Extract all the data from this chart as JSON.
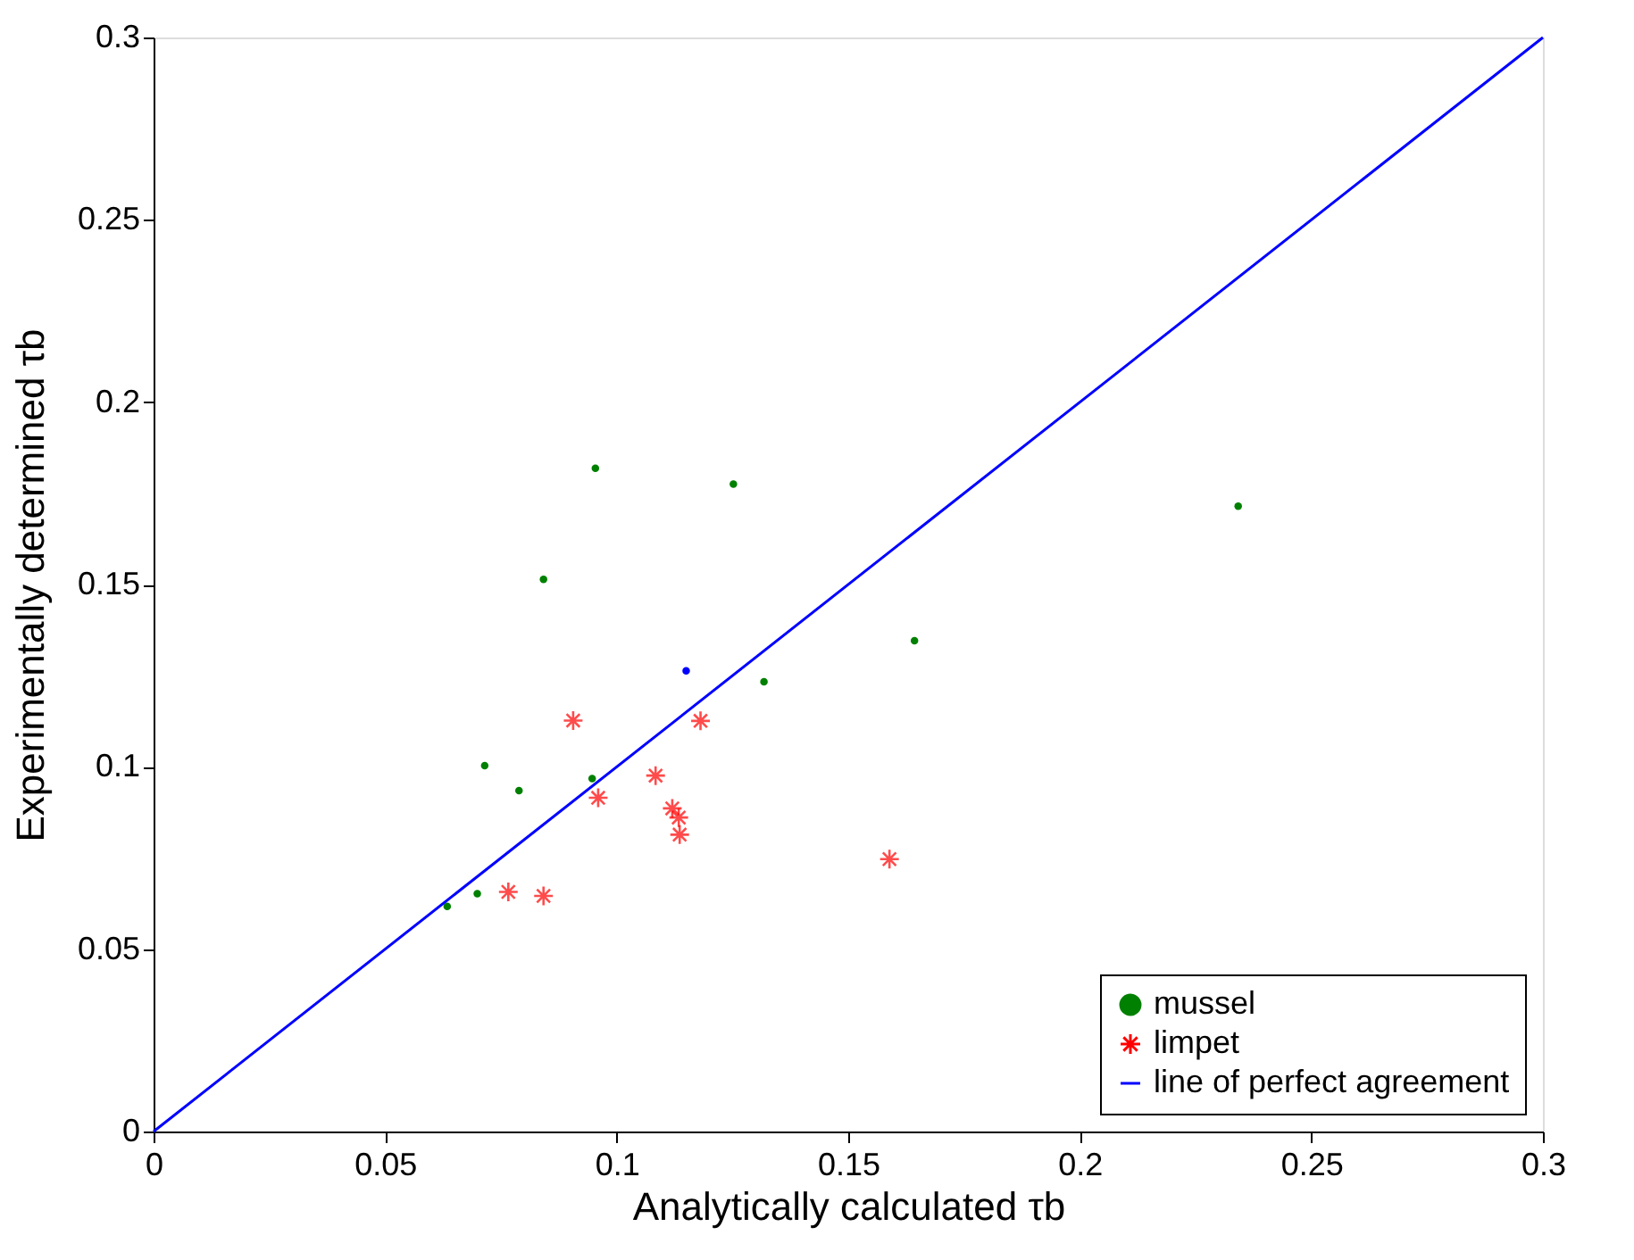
{
  "chart_data": {
    "type": "scatter",
    "xlabel": "Analytically calculated τb",
    "ylabel": "Experimentally determined τb",
    "xlim": [
      0,
      0.3
    ],
    "ylim": [
      0,
      0.3
    ],
    "xticks": [
      0,
      0.05,
      0.1,
      0.15,
      0.2,
      0.25,
      0.3
    ],
    "yticks": [
      0,
      0.05,
      0.1,
      0.15,
      0.2,
      0.25,
      0.3
    ],
    "grid": false,
    "legend": "bottom right",
    "series": [
      {
        "name": "mussel",
        "marker": "circle",
        "color": "#008000",
        "x": [
          0.0634,
          0.0699,
          0.0715,
          0.0789,
          0.0947,
          0.0842,
          0.0954,
          0.1252,
          0.1318,
          0.1643,
          0.2342
        ],
        "values": [
          0.0617,
          0.0652,
          0.1003,
          0.0935,
          0.0968,
          0.1514,
          0.1819,
          0.1775,
          0.1233,
          0.1346,
          0.1715
        ]
      },
      {
        "name": "limpet",
        "marker": "cross",
        "color": "#ff0000",
        "x": [
          0.0906,
          0.1181,
          0.1084,
          0.096,
          0.112,
          0.1134,
          0.1136,
          0.0766,
          0.0842,
          0.1589
        ],
        "values": [
          0.1127,
          0.1126,
          0.0976,
          0.0915,
          0.0886,
          0.0861,
          0.0814,
          0.0657,
          0.0646,
          0.0747
        ]
      },
      {
        "marker": "circle",
        "color": "#0000ff",
        "x": [
          0.115
        ],
        "values": [
          0.1263
        ]
      },
      {
        "name": "line of perfect agreement",
        "type": "line",
        "marker": "none",
        "line_style": "solid",
        "color": "#0000ff",
        "x": [
          0,
          0.3
        ],
        "values": [
          0,
          0.3
        ]
      }
    ]
  }
}
